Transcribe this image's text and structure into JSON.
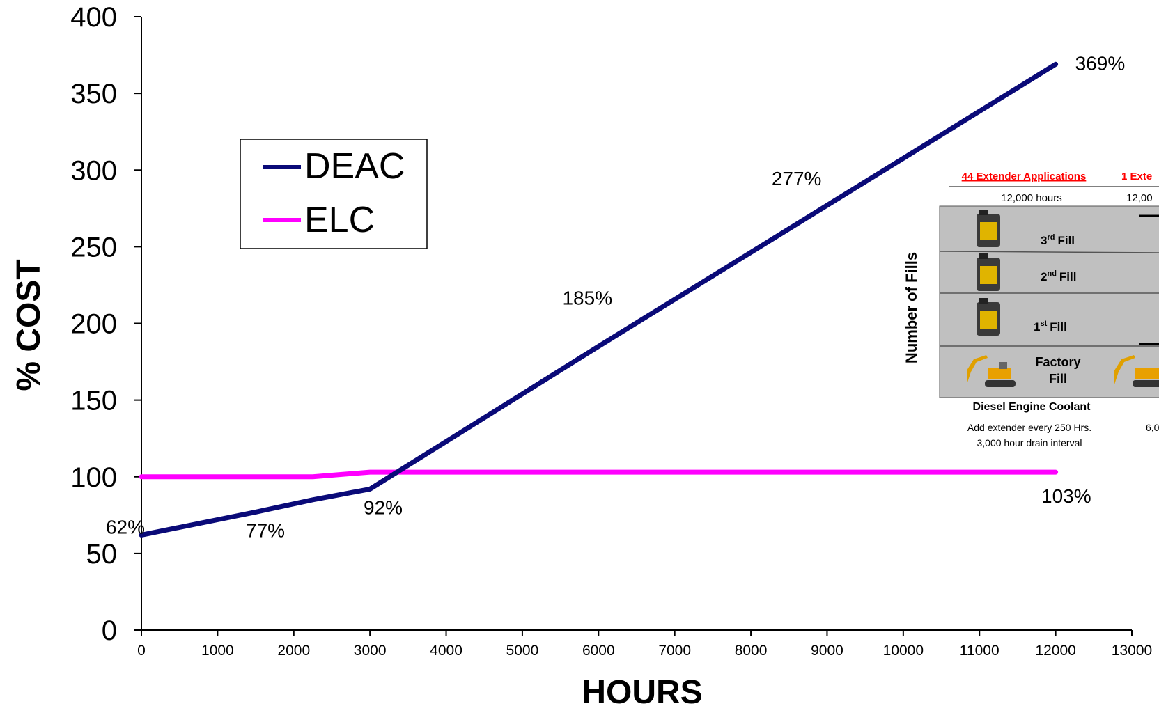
{
  "chart_data": {
    "type": "line",
    "xlabel": "HOURS",
    "ylabel": "% COST",
    "xlim": [
      0,
      13000
    ],
    "ylim": [
      0,
      400
    ],
    "x_ticks": [
      0,
      1000,
      2000,
      3000,
      4000,
      5000,
      6000,
      7000,
      8000,
      9000,
      10000,
      11000,
      12000,
      13000
    ],
    "y_ticks": [
      0,
      50,
      100,
      150,
      200,
      250,
      300,
      350,
      400
    ],
    "grid": false,
    "legend_position": "top-left",
    "series": [
      {
        "name": "DEAC",
        "color": "#0a0a78",
        "x": [
          0,
          1500,
          2250,
          3000,
          6000,
          9000,
          12000
        ],
        "y": [
          62,
          77,
          85,
          92,
          185,
          277,
          369
        ]
      },
      {
        "name": "ELC",
        "color": "#ff00ff",
        "x": [
          0,
          2250,
          3000,
          12000
        ],
        "y": [
          100,
          100,
          103,
          103
        ]
      }
    ],
    "annotations": [
      {
        "text": "62%",
        "x": 0,
        "y": 62
      },
      {
        "text": "77%",
        "x": 1500,
        "y": 77
      },
      {
        "text": "92%",
        "x": 3000,
        "y": 92
      },
      {
        "text": "185%",
        "x": 6000,
        "y": 185
      },
      {
        "text": "277%",
        "x": 9000,
        "y": 277
      },
      {
        "text": "369%",
        "x": 12000,
        "y": 369
      },
      {
        "text": "103%",
        "x": 12000,
        "y": 103
      }
    ]
  },
  "inset": {
    "header_left": "44 Extender Applications",
    "header_right": "1 Exte",
    "hours_left": "12,000 hours",
    "hours_right": "12,00",
    "side_label": "Number of Fills",
    "fills": [
      {
        "num": "3",
        "sup": "rd",
        "word": "Fill"
      },
      {
        "num": "2",
        "sup": "nd",
        "word": "Fill"
      },
      {
        "num": "1",
        "sup": "st",
        "word": "Fill"
      }
    ],
    "factory_line1": "Factory",
    "factory_line2": "Fill",
    "footer_title": "Diesel Engine Coolant",
    "footer_line1": "Add extender every 250 Hrs.",
    "footer_line2": "3,000 hour drain interval",
    "footer_right": "6,0",
    "header_color": "#ff0000"
  }
}
